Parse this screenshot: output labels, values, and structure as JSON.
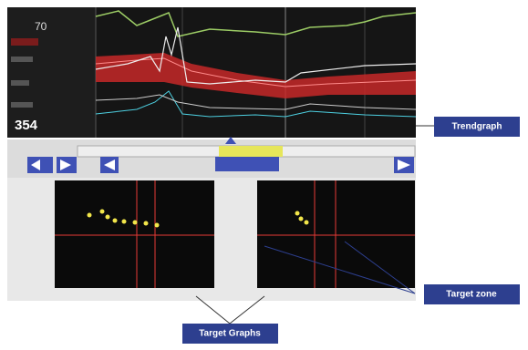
{
  "trend_panel": {
    "readings": [
      "70",
      "354"
    ]
  },
  "callouts": {
    "trendgraph": "Trendgraph",
    "target_graphs": "Target Graphs",
    "target_zone": "Target zone"
  }
}
